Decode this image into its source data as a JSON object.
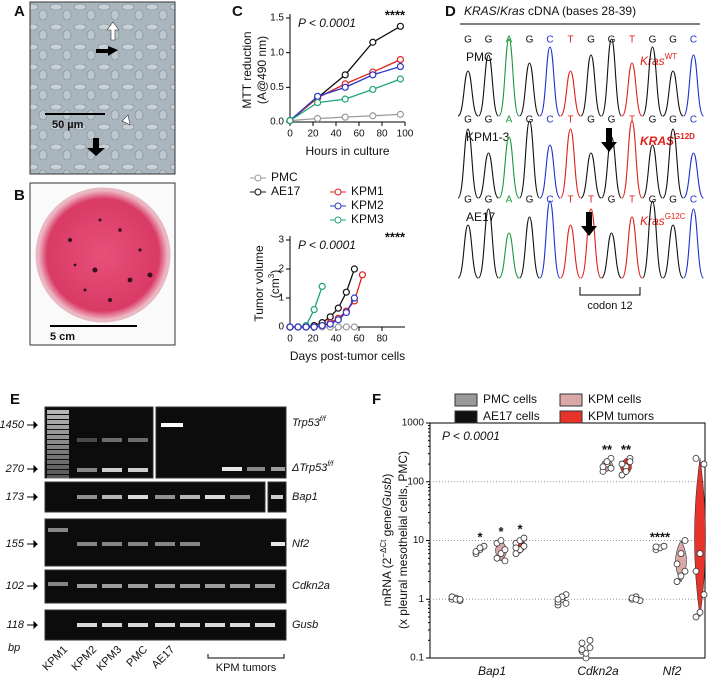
{
  "panel_labels": [
    "A",
    "B",
    "C",
    "D",
    "E",
    "F"
  ],
  "panel_a": {
    "scale_bar": "50 µm"
  },
  "panel_b": {
    "scale_bar": "5 cm"
  },
  "chart_data": [
    {
      "type": "line",
      "y_label": [
        "MTT reduction",
        "(A@490 nm)"
      ],
      "x_label": "Hours in culture",
      "annotations": [
        "P < 0.0001",
        "****"
      ],
      "x": [
        0,
        24,
        48,
        72,
        96
      ],
      "xlim": [
        0,
        100
      ],
      "xticks": [
        0,
        20,
        40,
        60,
        80,
        100
      ],
      "ylim": [
        0,
        1.5
      ],
      "yticks": [
        {
          "value": 0,
          "label": "0.0"
        },
        0.5,
        {
          "value": 1,
          "label": "1.0"
        },
        1.5
      ],
      "series": [
        {
          "name": "PMC",
          "color": "#9a9a9a",
          "values": [
            0.02,
            0.05,
            0.07,
            0.09,
            0.11
          ]
        },
        {
          "name": "AE17",
          "color": "#111111",
          "values": [
            0.02,
            0.35,
            0.68,
            1.15,
            1.38
          ]
        },
        {
          "name": "KPM1",
          "color": "#e0201b",
          "values": [
            0.02,
            0.35,
            0.55,
            0.72,
            0.9
          ]
        },
        {
          "name": "KPM2",
          "color": "#2a35c8",
          "values": [
            0.02,
            0.37,
            0.5,
            0.68,
            0.8
          ]
        },
        {
          "name": "KPM3",
          "color": "#1fa37a",
          "values": [
            0.02,
            0.28,
            0.33,
            0.47,
            0.62
          ]
        }
      ]
    },
    {
      "type": "line",
      "y_label": "Tumor volume",
      "y_unit": {
        "base": "(cm",
        "sup": "3",
        "end": ")"
      },
      "x_label": "Days post-tumor cells",
      "annotations": [
        "P < 0.0001",
        "****"
      ],
      "xlim": [
        0,
        100
      ],
      "xticks": [
        0,
        20,
        40,
        60,
        80
      ],
      "ylim": [
        0,
        3
      ],
      "yticks": [
        0,
        1,
        2,
        3
      ],
      "series": [
        {
          "color": "#9a9a9a",
          "x": [
            0,
            7,
            14,
            21,
            28,
            35,
            42,
            49,
            56
          ],
          "values": [
            0,
            0,
            0,
            0,
            0,
            0,
            0,
            0,
            0
          ]
        },
        {
          "color": "#1fa37a",
          "x": [
            0,
            7,
            14,
            21,
            28
          ],
          "values": [
            0,
            0,
            0.05,
            0.6,
            1.4
          ]
        },
        {
          "color": "#111111",
          "x": [
            0,
            7,
            14,
            21,
            28,
            35,
            42,
            49,
            56
          ],
          "values": [
            0,
            0,
            0,
            0.05,
            0.15,
            0.35,
            0.65,
            1.2,
            2.0
          ]
        },
        {
          "color": "#e0201b",
          "x": [
            0,
            7,
            14,
            21,
            28,
            35,
            42,
            49,
            56,
            63
          ],
          "values": [
            0,
            0,
            0,
            0,
            0.05,
            0.15,
            0.3,
            0.55,
            0.9,
            1.8
          ]
        },
        {
          "color": "#2a35c8",
          "x": [
            0,
            7,
            14,
            21,
            28,
            35,
            42,
            49,
            56
          ],
          "values": [
            0,
            0,
            0,
            0,
            0.05,
            0.1,
            0.25,
            0.5,
            1.0
          ]
        }
      ]
    },
    {
      "type": "strip",
      "log": true,
      "grid": true,
      "y_label": {
        "a": "mRNA (2",
        "sup": "−ΔCt",
        "b": " gene/",
        "gene": "Gusb",
        "c": ")",
        "line2": "(x pleural mesothelial cells, PMC)"
      },
      "annotations": [
        "P < 0.0001"
      ],
      "stars": [
        "*",
        "*",
        "*",
        "**",
        "**",
        "****"
      ],
      "categories": [
        "Bap1",
        "Cdkn2a",
        "Nf2"
      ],
      "ylim": [
        0.1,
        1000
      ],
      "yticks": [
        0.1,
        1,
        10,
        100,
        1000
      ],
      "series": [
        {
          "name": "PMC cells",
          "color": "#9a9a9a",
          "values": [
            [
              1,
              1.05,
              0.95,
              1.1,
              1,
              1
            ],
            [
              0.8,
              1,
              1.2,
              0.9,
              1.1,
              0.85,
              1
            ],
            [
              1,
              1.1,
              0.95,
              1.05,
              1
            ]
          ]
        },
        {
          "name": "AE17 cells",
          "color": "#111111",
          "values": [
            [
              6,
              7,
              8,
              6.5,
              7.5
            ],
            [
              0.13,
              0.1,
              0.15,
              0.18,
              0.12,
              0.2,
              0.14
            ],
            [
              7,
              7.5,
              8,
              7.8
            ]
          ]
        },
        {
          "name": "KPM cells",
          "color": "#d8a9a6",
          "values": [
            [
              5,
              6,
              7,
              9,
              10,
              4.5
            ],
            [
              150,
              200,
              250,
              180,
              220,
              170
            ],
            [
              2,
              2.5,
              3,
              4,
              6,
              10
            ]
          ]
        },
        {
          "name": "KPM tumors",
          "color": "#e8332b",
          "values": [
            [
              6,
              7,
              8,
              9,
              10,
              11,
              7.5
            ],
            [
              130,
              180,
              250,
              200,
              150,
              220
            ],
            [
              0.5,
              0.6,
              1.2,
              3,
              6,
              200,
              250
            ]
          ]
        }
      ]
    }
  ],
  "panel_d": {
    "title": {
      "a": "KRAS",
      "b": "/",
      "c": "Kras",
      "d": " cDNA (bases 28-39)"
    },
    "rows": [
      {
        "sample": "PMC",
        "gene": "Kras",
        "allele": "WT",
        "bases": [
          "G",
          "G",
          "A",
          "G",
          "C",
          "T",
          "G",
          "G",
          "T",
          "G",
          "G",
          "C"
        ]
      },
      {
        "sample": "KPM1-3",
        "gene": "KRAS",
        "allele": "G12D",
        "bases": [
          "G",
          "G",
          "A",
          "G",
          "C",
          "T",
          "G",
          "G",
          "T",
          "G",
          "G",
          "C"
        ]
      },
      {
        "sample": "AE17",
        "gene": "Kras",
        "allele": "G12C",
        "bases": [
          "G",
          "G",
          "A",
          "G",
          "C",
          "T",
          "T",
          "G",
          "T",
          "G",
          "G",
          "C"
        ]
      }
    ],
    "codon_label": "codon 12"
  },
  "panel_e": {
    "markers": [
      "1450",
      "270",
      "173",
      "155",
      "102",
      "118"
    ],
    "unit": "bp",
    "genes": [
      {
        "name": "Trp53",
        "sup": "f/f"
      },
      {
        "name": "ΔTrp53",
        "sup": "f/f"
      },
      {
        "name": "Bap1"
      },
      {
        "name": "Nf2"
      },
      {
        "name": "Cdkn2a"
      },
      {
        "name": "Gusb"
      }
    ],
    "lanes": [
      "KPM1",
      "KPM2",
      "KPM3",
      "PMC",
      "AE17"
    ],
    "tumor_label": "KPM tumors"
  }
}
